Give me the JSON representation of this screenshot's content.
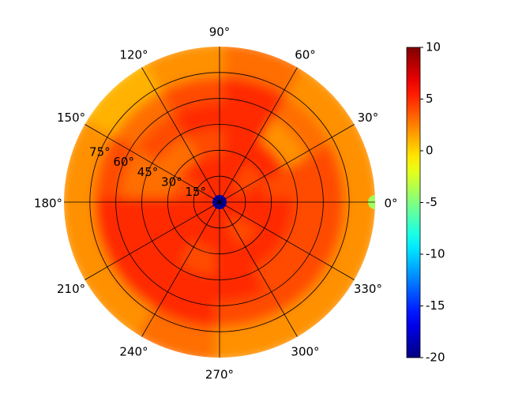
{
  "chart_data": {
    "type": "polar_heatmap",
    "colormap": "jet",
    "theta_bins": [
      0,
      30,
      60,
      90,
      120,
      150,
      180,
      210,
      240,
      270,
      300,
      330,
      360
    ],
    "r_bins": [
      0,
      15,
      30,
      45,
      60,
      75,
      90
    ],
    "values": [
      [
        5,
        5,
        5,
        5,
        5,
        5,
        5,
        5,
        5,
        5,
        5,
        5
      ],
      [
        5,
        4,
        5,
        5,
        5,
        4,
        5,
        5,
        5,
        5,
        4,
        5
      ],
      [
        4,
        5,
        5,
        4,
        3,
        3,
        5,
        5,
        4,
        5,
        5,
        5
      ],
      [
        4,
        2,
        5,
        5,
        4,
        3,
        5,
        5,
        5,
        5,
        4,
        4
      ],
      [
        4,
        3,
        5,
        4,
        3,
        4,
        5,
        5,
        5,
        4,
        4,
        4
      ],
      [
        2,
        2,
        3,
        2,
        1,
        2,
        2,
        2,
        3,
        2,
        2,
        2
      ]
    ],
    "points": [
      {
        "theta": 0,
        "r": 0,
        "value": -18
      },
      {
        "theta": 0,
        "r": 90,
        "value": -4
      }
    ],
    "rlim": [
      0,
      90
    ],
    "clim": [
      -20,
      10
    ],
    "cticks": [
      10,
      5,
      0,
      -5,
      -10,
      -15,
      -20
    ],
    "thetaticks": [
      {
        "value": 0,
        "label": "0°"
      },
      {
        "value": 30,
        "label": "30°"
      },
      {
        "value": 60,
        "label": "60°"
      },
      {
        "value": 90,
        "label": "90°"
      },
      {
        "value": 120,
        "label": "120°"
      },
      {
        "value": 150,
        "label": "150°"
      },
      {
        "value": 180,
        "label": "180°"
      },
      {
        "value": 210,
        "label": "210°"
      },
      {
        "value": 240,
        "label": "240°"
      },
      {
        "value": 270,
        "label": "270°"
      },
      {
        "value": 300,
        "label": "300°"
      },
      {
        "value": 330,
        "label": "330°"
      }
    ],
    "rticks": [
      {
        "value": 15,
        "label": "15°"
      },
      {
        "value": 30,
        "label": "30°"
      },
      {
        "value": 45,
        "label": "45°"
      },
      {
        "value": 60,
        "label": "60°"
      },
      {
        "value": 75,
        "label": "75°"
      }
    ]
  }
}
